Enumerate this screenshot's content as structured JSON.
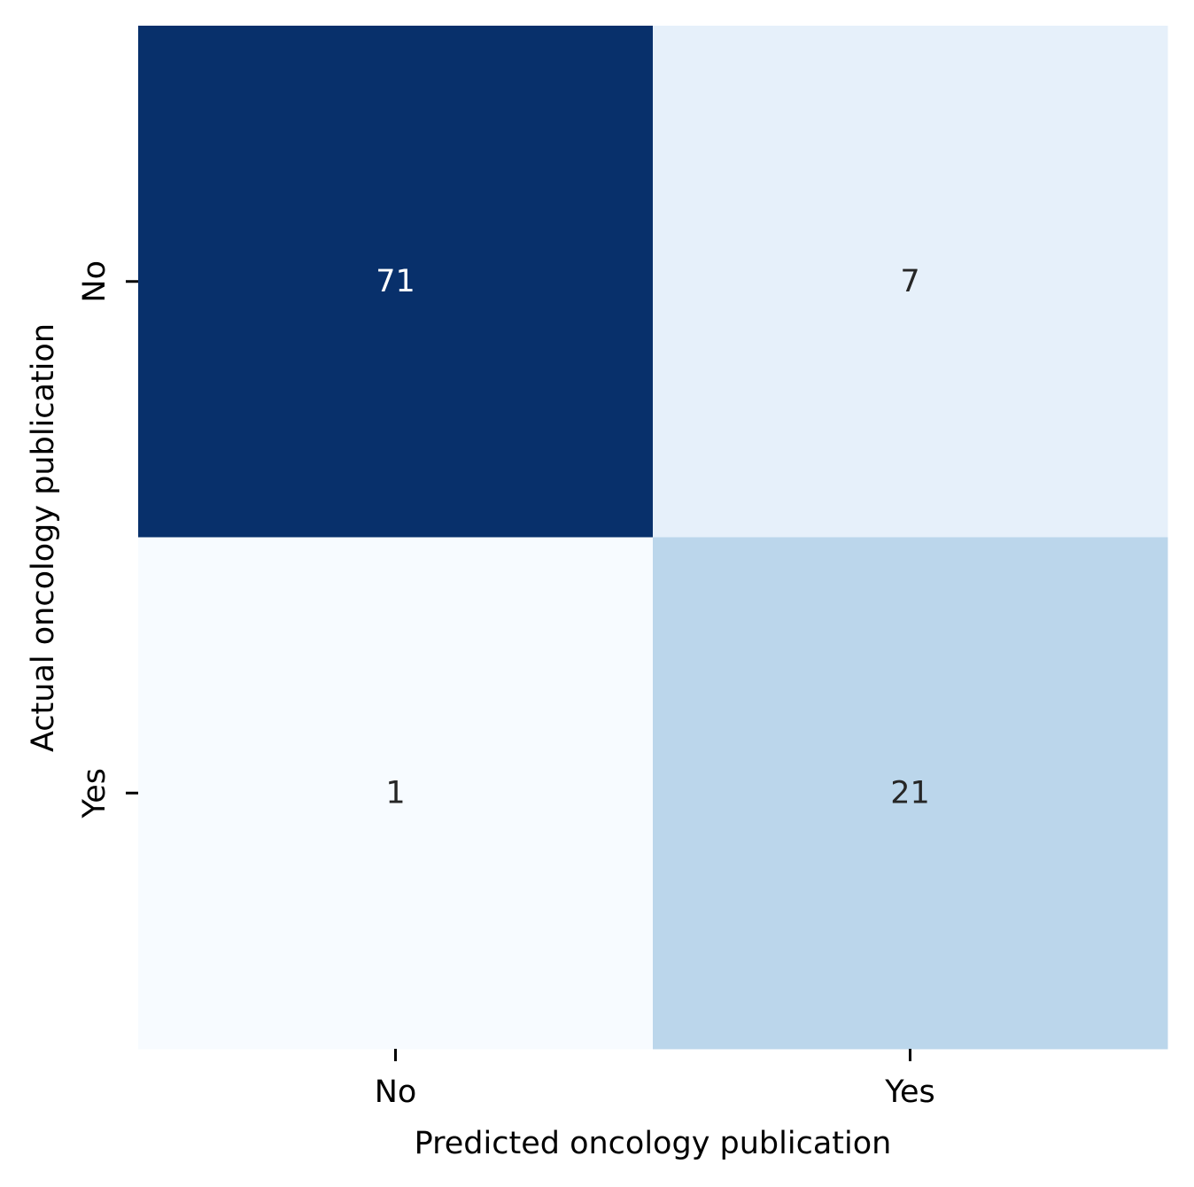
{
  "chart_data": {
    "type": "heatmap",
    "title": "",
    "xlabel": "Predicted oncology publication",
    "ylabel": "Actual oncology publication",
    "x_categories": [
      "No",
      "Yes"
    ],
    "y_categories": [
      "No",
      "Yes"
    ],
    "values": [
      [
        71,
        7
      ],
      [
        1,
        21
      ]
    ],
    "colormap": "Blues",
    "vmin": 1,
    "vmax": 71,
    "colorbar": false,
    "grid": false,
    "annotate": true,
    "colors": {
      "low": "#f7fbff",
      "high": "#08306b",
      "dark_text": "#262626",
      "light_text": "#ffffff"
    }
  }
}
